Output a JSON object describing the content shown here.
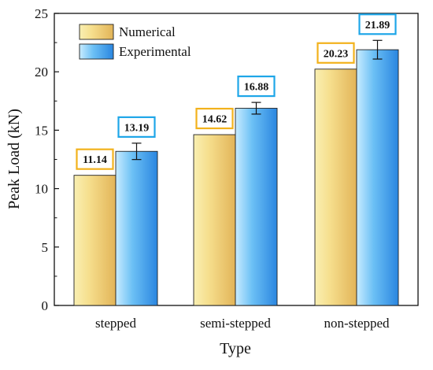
{
  "chart_data": {
    "type": "bar",
    "xlabel": "Type",
    "ylabel": "Peak Load (kN)",
    "categories": [
      "stepped",
      "semi-stepped",
      "non-stepped"
    ],
    "ylim": [
      0,
      25
    ],
    "yticks": [
      0,
      5,
      10,
      15,
      20,
      25
    ],
    "grid": false,
    "legend_position": "top-left",
    "series": [
      {
        "name": "Numerical",
        "values": [
          11.14,
          14.62,
          20.23
        ],
        "labels": [
          "11.14",
          "14.62",
          "20.23"
        ],
        "color_light": "#fbf1b4",
        "color_dark": "#e4b85a",
        "label_border": "#f2b21c"
      },
      {
        "name": "Experimental",
        "values": [
          13.19,
          16.88,
          21.89
        ],
        "labels": [
          "13.19",
          "16.88",
          "21.89"
        ],
        "error": [
          0.7,
          0.5,
          0.8
        ],
        "color_light": "#bfe6ff",
        "color_dark": "#2f8fe6",
        "label_border": "#1ea6e8"
      }
    ]
  }
}
